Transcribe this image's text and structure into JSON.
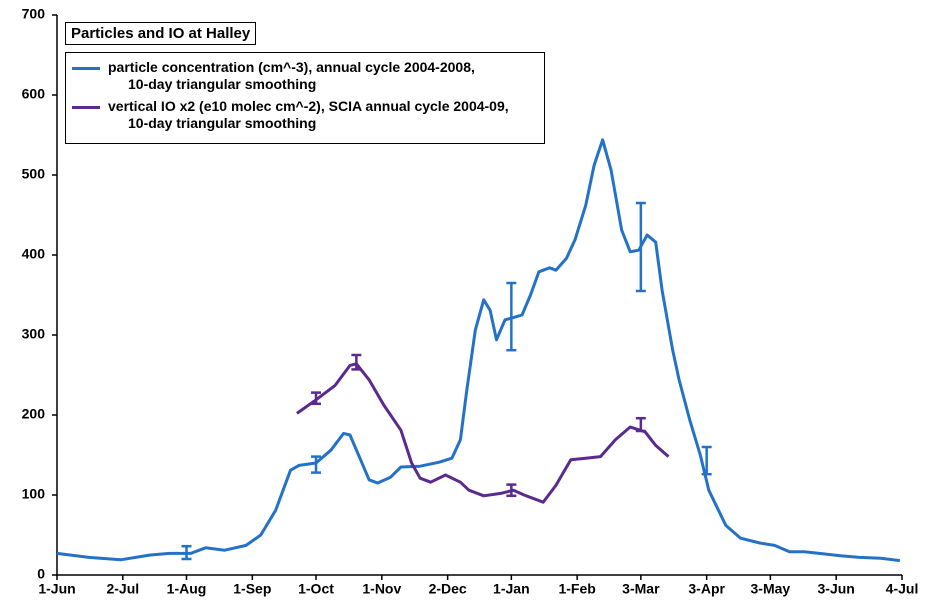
{
  "chart_data": {
    "type": "line",
    "title": "Particles and IO at Halley",
    "legend": "upper left",
    "xlim": [
      0,
      398
    ],
    "xticks": [
      {
        "value": 0,
        "label": "1-Jun"
      },
      {
        "value": 31,
        "label": "2-Jul"
      },
      {
        "value": 61,
        "label": "1-Aug"
      },
      {
        "value": 92,
        "label": "1-Sep"
      },
      {
        "value": 122,
        "label": "1-Oct"
      },
      {
        "value": 153,
        "label": "1-Nov"
      },
      {
        "value": 184,
        "label": "2-Dec"
      },
      {
        "value": 214,
        "label": "1-Jan"
      },
      {
        "value": 245,
        "label": "1-Feb"
      },
      {
        "value": 275,
        "label": "3-Mar"
      },
      {
        "value": 306,
        "label": "3-Apr"
      },
      {
        "value": 336,
        "label": "3-May"
      },
      {
        "value": 367,
        "label": "3-Jun"
      },
      {
        "value": 398,
        "label": "4-Jul"
      }
    ],
    "ylim": [
      0,
      700
    ],
    "yticks": [
      0,
      100,
      200,
      300,
      400,
      500,
      600,
      700
    ],
    "series": [
      {
        "name": "particle concentration (cm^-3), annual cycle 2004-2008,\n10-day triangular smoothing",
        "color": "#2472c8",
        "x": [
          0,
          15,
          30,
          44,
          53,
          63,
          70,
          79,
          89,
          96,
          103,
          110,
          114,
          122,
          129,
          135,
          138,
          143,
          147,
          151,
          157,
          162,
          171,
          180,
          186,
          190,
          193,
          197,
          201,
          204,
          207,
          211,
          214,
          219,
          223,
          227,
          232,
          235,
          240,
          244,
          249,
          253,
          257,
          261,
          266,
          270,
          274,
          278,
          282,
          285,
          290,
          293,
          298,
          303,
          307,
          315,
          322,
          331,
          338,
          345,
          352,
          359,
          369,
          378,
          388,
          397
        ],
        "values": [
          27,
          22,
          19,
          25,
          27,
          27,
          34,
          31,
          37,
          50,
          81,
          131,
          137,
          140,
          156,
          177,
          175,
          144,
          119,
          115,
          122,
          135,
          136,
          141,
          146,
          169,
          231,
          306,
          344,
          331,
          294,
          319,
          321,
          325,
          350,
          379,
          384,
          381,
          396,
          419,
          462,
          512,
          544,
          506,
          431,
          404,
          406,
          425,
          416,
          356,
          281,
          244,
          194,
          150,
          106,
          62,
          46,
          40,
          37,
          29,
          29,
          27,
          24,
          22,
          21,
          18
        ],
        "error_bars": {
          "x": [
            61,
            122,
            214,
            275,
            306
          ],
          "values": [
            28,
            138,
            323,
            410,
            143
          ],
          "errors": [
            8,
            10,
            42,
            55,
            17
          ]
        }
      },
      {
        "name": "vertical IO x2 (e10 molec cm^-2), SCIA annual cycle 2004-09,\n10-day triangular smoothing",
        "color": "#5b2a8e",
        "x": [
          113,
          122,
          131,
          138,
          141,
          147,
          154,
          162,
          167,
          171,
          176,
          183,
          190,
          194,
          201,
          209,
          215,
          220,
          229,
          235,
          242,
          249,
          256,
          263,
          270,
          277,
          282,
          288
        ],
        "values": [
          202,
          219,
          237,
          262,
          264,
          244,
          212,
          181,
          140,
          121,
          116,
          125,
          116,
          106,
          99,
          102,
          106,
          100,
          91,
          112,
          144,
          146,
          148,
          169,
          185,
          179,
          162,
          148
        ],
        "error_bars": {
          "x": [
            122,
            141,
            214,
            275
          ],
          "values": [
            221,
            266,
            106,
            188
          ],
          "errors": [
            7,
            9,
            7,
            8
          ]
        }
      }
    ]
  }
}
